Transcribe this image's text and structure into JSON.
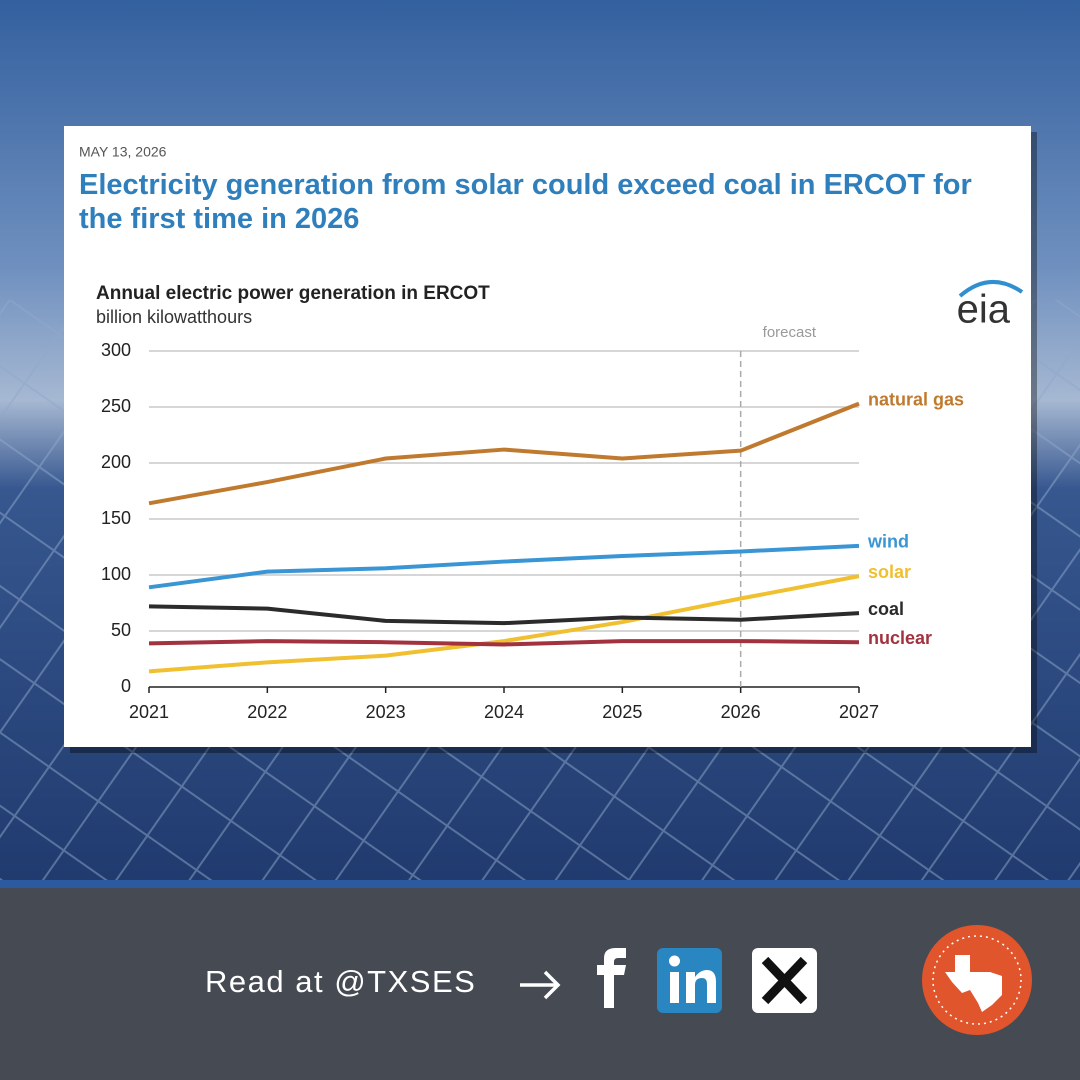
{
  "chart_data": {
    "type": "line",
    "date": "MAY 13, 2026",
    "title": "Electricity generation from solar could exceed coal in ERCOT for the first time in 2026",
    "subtitle": "Annual electric power generation in ERCOT",
    "ylabel": "billion kilowatthours",
    "logo": "eia",
    "forecast": {
      "label": "forecast",
      "x": 2026
    },
    "x": [
      2021,
      2022,
      2023,
      2024,
      2025,
      2026,
      2027
    ],
    "xlim": [
      2021,
      2027
    ],
    "xticks": [
      2021,
      2022,
      2023,
      2024,
      2025,
      2026,
      2027
    ],
    "ylim": [
      0,
      300
    ],
    "yticks": [
      0,
      50,
      100,
      150,
      200,
      250,
      300
    ],
    "grid": true,
    "series": [
      {
        "name": "natural gas",
        "color": "#c07a2f",
        "values": [
          164,
          183,
          204,
          212,
          204,
          211,
          253
        ]
      },
      {
        "name": "wind",
        "color": "#3a95d4",
        "values": [
          89,
          103,
          106,
          112,
          117,
          121,
          126
        ]
      },
      {
        "name": "solar",
        "color": "#f0c030",
        "values": [
          14,
          22,
          28,
          41,
          58,
          79,
          99
        ]
      },
      {
        "name": "coal",
        "color": "#2b2b2b",
        "values": [
          72,
          70,
          59,
          57,
          62,
          60,
          66
        ]
      },
      {
        "name": "nuclear",
        "color": "#a3323f",
        "values": [
          39,
          41,
          40,
          38,
          41,
          41,
          40
        ]
      }
    ]
  },
  "footer": {
    "text": "Read at @TXSES"
  }
}
